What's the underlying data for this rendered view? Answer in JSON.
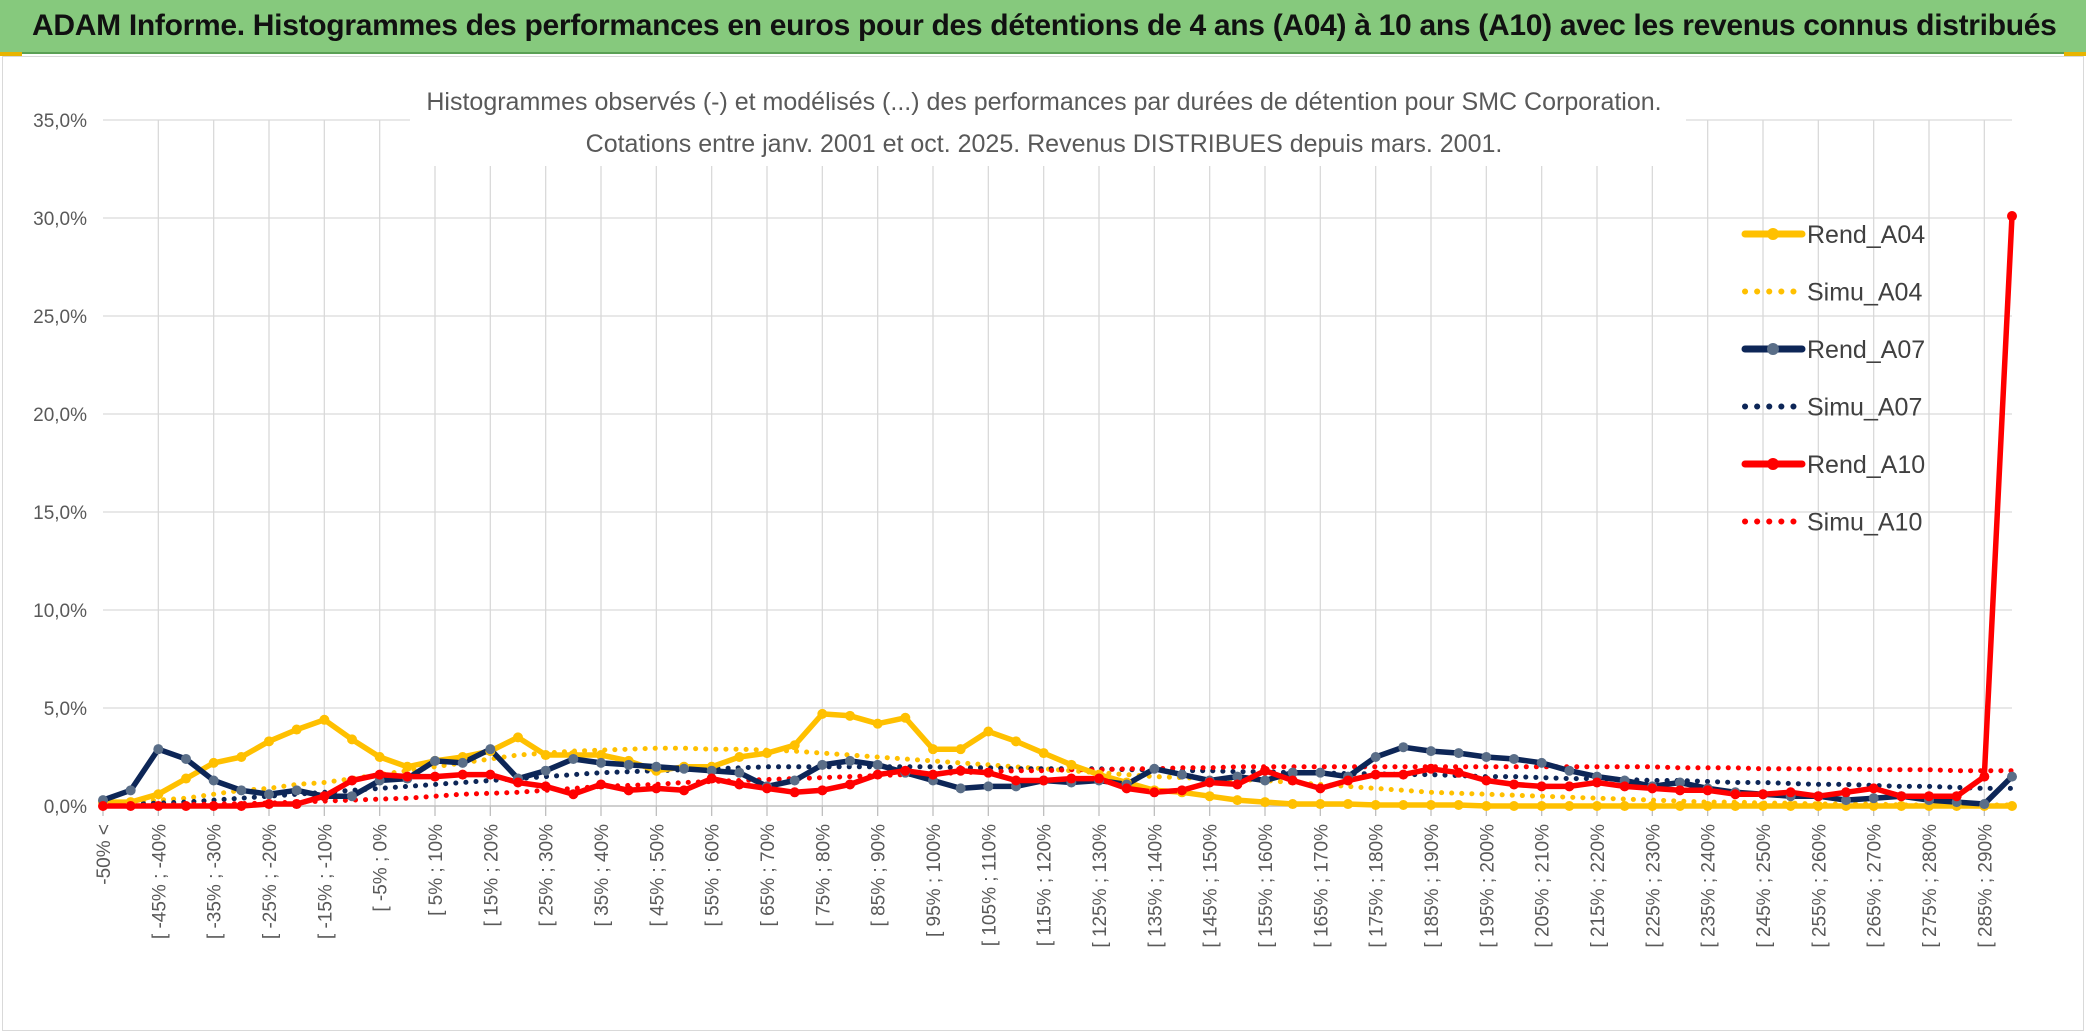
{
  "header": {
    "title": "ADAM Informe. Histogrammes des performances en euros pour des détentions de 4 ans (A04) à 10 ans (A10) avec les revenus connus distribués"
  },
  "colors": {
    "header_bg": "#86c97d",
    "a04": "#ffc000",
    "a07": "#0d2657",
    "a07_marker": "#5a6e88",
    "a10": "#ff0000"
  },
  "chart_data": {
    "type": "line",
    "title": "Histogrammes observés (-) et modélisés (...) des performances par durées de détention pour SMC Corporation.",
    "subtitle": "Cotations entre janv. 2001 et oct. 2025. Revenus DISTRIBUES depuis mars. 2001.",
    "ylim": [
      0,
      35
    ],
    "yticks": [
      "0,0%",
      "5,0%",
      "10,0%",
      "15,0%",
      "20,0%",
      "25,0%",
      "30,0%",
      "35,0%"
    ],
    "n_points": 70,
    "xtick_labels": [
      "-50% <",
      "[ -45% ; -40%",
      "[ -35% ; -30%",
      "[ -25% ; -20%",
      "[ -15% ; -10%",
      "[ -5% ; 0%",
      "[ 5% ; 10%",
      "[ 15% ; 20%",
      "[ 25% ; 30%",
      "[ 35% ; 40%",
      "[ 45% ; 50%",
      "[ 55% ; 60%",
      "[ 65% ; 70%",
      "[ 75% ; 80%",
      "[ 85% ; 90%",
      "[ 95% ; 100%",
      "[ 105% ; 110%",
      "[ 115% ; 120%",
      "[ 125% ; 130%",
      "[ 135% ; 140%",
      "[ 145% ; 150%",
      "[ 155% ; 160%",
      "[ 165% ; 170%",
      "[ 175% ; 180%",
      "[ 185% ; 190%",
      "[ 195% ; 200%",
      "[ 205% ; 210%",
      "[ 215% ; 220%",
      "[ 225% ; 230%",
      "[ 235% ; 240%",
      "[ 245% ; 250%",
      "[ 255% ; 260%",
      "[ 265% ; 270%",
      "[ 275% ; 280%",
      "[ 285% ; 290%"
    ],
    "legend_position": "right",
    "series": [
      {
        "name": "Rend_A04",
        "style": "solid",
        "color": "#ffc000",
        "values": [
          0.2,
          0.2,
          0.6,
          1.4,
          2.2,
          2.5,
          3.3,
          3.9,
          4.4,
          3.4,
          2.5,
          2.0,
          2.3,
          2.5,
          2.8,
          3.5,
          2.6,
          2.6,
          2.6,
          2.3,
          1.8,
          2.0,
          2.0,
          2.5,
          2.7,
          3.1,
          4.7,
          4.6,
          4.2,
          4.5,
          2.9,
          2.9,
          3.8,
          3.3,
          2.7,
          2.1,
          1.6,
          1.2,
          0.8,
          0.7,
          0.5,
          0.3,
          0.2,
          0.1,
          0.1,
          0.1,
          0.05,
          0.05,
          0.05,
          0.05,
          0,
          0,
          0,
          0,
          0,
          0,
          0,
          0,
          0,
          0,
          0,
          0,
          0,
          0,
          0,
          0,
          0,
          0,
          0,
          0
        ]
      },
      {
        "name": "Simu_A04",
        "style": "dotted",
        "color": "#ffc000",
        "values": [
          0.1,
          0.2,
          0.3,
          0.4,
          0.6,
          0.8,
          0.9,
          1.1,
          1.2,
          1.4,
          1.6,
          1.8,
          2.0,
          2.2,
          2.4,
          2.6,
          2.7,
          2.8,
          2.85,
          2.9,
          2.95,
          2.95,
          2.9,
          2.9,
          2.85,
          2.8,
          2.7,
          2.6,
          2.5,
          2.4,
          2.3,
          2.2,
          2.1,
          2.0,
          1.9,
          1.8,
          1.7,
          1.6,
          1.5,
          1.45,
          1.4,
          1.35,
          1.3,
          1.2,
          1.1,
          1.0,
          0.9,
          0.8,
          0.7,
          0.65,
          0.6,
          0.55,
          0.5,
          0.45,
          0.4,
          0.35,
          0.3,
          0.25,
          0.2,
          0.2,
          0.15,
          0.15,
          0.1,
          0.1,
          0.1,
          0.05,
          0.05,
          0.05,
          0.05,
          0.05
        ]
      },
      {
        "name": "Rend_A07",
        "style": "solid",
        "color": "#0d2657",
        "values": [
          0.3,
          0.8,
          2.9,
          2.4,
          1.3,
          0.8,
          0.6,
          0.8,
          0.5,
          0.5,
          1.3,
          1.4,
          2.3,
          2.2,
          2.9,
          1.4,
          1.8,
          2.4,
          2.2,
          2.1,
          2.0,
          1.9,
          1.8,
          1.7,
          1.0,
          1.3,
          2.1,
          2.3,
          2.1,
          1.7,
          1.3,
          0.9,
          1.0,
          1.0,
          1.3,
          1.2,
          1.3,
          1.1,
          1.9,
          1.6,
          1.3,
          1.5,
          1.3,
          1.7,
          1.7,
          1.5,
          2.5,
          3.0,
          2.8,
          2.7,
          2.5,
          2.4,
          2.2,
          1.8,
          1.5,
          1.3,
          1.0,
          1.2,
          0.9,
          0.7,
          0.6,
          0.5,
          0.5,
          0.3,
          0.4,
          0.5,
          0.3,
          0.2,
          0.1,
          1.5
        ]
      },
      {
        "name": "Simu_A07",
        "style": "dotted",
        "color": "#0d2657",
        "values": [
          0.05,
          0.1,
          0.15,
          0.2,
          0.3,
          0.4,
          0.5,
          0.6,
          0.7,
          0.8,
          0.9,
          1.0,
          1.1,
          1.2,
          1.3,
          1.4,
          1.5,
          1.6,
          1.7,
          1.75,
          1.8,
          1.85,
          1.9,
          1.95,
          2.0,
          2.0,
          2.0,
          2.0,
          2.0,
          2.0,
          2.0,
          1.95,
          1.95,
          1.9,
          1.9,
          1.9,
          1.9,
          1.85,
          1.85,
          1.8,
          1.8,
          1.75,
          1.75,
          1.7,
          1.7,
          1.65,
          1.65,
          1.6,
          1.6,
          1.55,
          1.5,
          1.5,
          1.45,
          1.4,
          1.4,
          1.35,
          1.3,
          1.3,
          1.25,
          1.2,
          1.2,
          1.15,
          1.1,
          1.1,
          1.05,
          1.0,
          1.0,
          0.95,
          0.9,
          0.9
        ]
      },
      {
        "name": "Rend_A10",
        "style": "solid",
        "color": "#ff0000",
        "values": [
          0,
          0,
          0,
          0,
          0,
          0,
          0.1,
          0.1,
          0.5,
          1.3,
          1.6,
          1.5,
          1.5,
          1.6,
          1.6,
          1.2,
          1.0,
          0.6,
          1.1,
          0.8,
          0.9,
          0.8,
          1.4,
          1.1,
          0.9,
          0.7,
          0.8,
          1.1,
          1.6,
          1.8,
          1.6,
          1.8,
          1.7,
          1.3,
          1.3,
          1.4,
          1.4,
          0.9,
          0.7,
          0.8,
          1.2,
          1.1,
          1.8,
          1.3,
          0.9,
          1.3,
          1.6,
          1.6,
          1.9,
          1.7,
          1.3,
          1.1,
          1.0,
          1.0,
          1.2,
          1.0,
          0.9,
          0.8,
          0.8,
          0.6,
          0.6,
          0.7,
          0.5,
          0.7,
          0.9,
          0.5,
          0.5,
          0.5,
          1.5,
          30.1
        ]
      },
      {
        "name": "Simu_A10",
        "style": "dotted",
        "color": "#ff0000",
        "values": [
          0.02,
          0.03,
          0.05,
          0.07,
          0.1,
          0.12,
          0.15,
          0.2,
          0.25,
          0.3,
          0.35,
          0.4,
          0.5,
          0.6,
          0.65,
          0.7,
          0.8,
          0.9,
          1.0,
          1.05,
          1.1,
          1.2,
          1.25,
          1.3,
          1.35,
          1.4,
          1.45,
          1.5,
          1.55,
          1.6,
          1.65,
          1.7,
          1.75,
          1.8,
          1.8,
          1.85,
          1.85,
          1.9,
          1.9,
          1.95,
          1.95,
          2.0,
          2.0,
          2.0,
          2.0,
          2.0,
          2.0,
          2.0,
          2.0,
          2.0,
          2.0,
          2.0,
          2.0,
          2.0,
          2.0,
          2.0,
          2.0,
          1.95,
          1.95,
          1.95,
          1.9,
          1.9,
          1.9,
          1.9,
          1.85,
          1.85,
          1.85,
          1.8,
          1.8,
          1.8
        ]
      }
    ]
  }
}
